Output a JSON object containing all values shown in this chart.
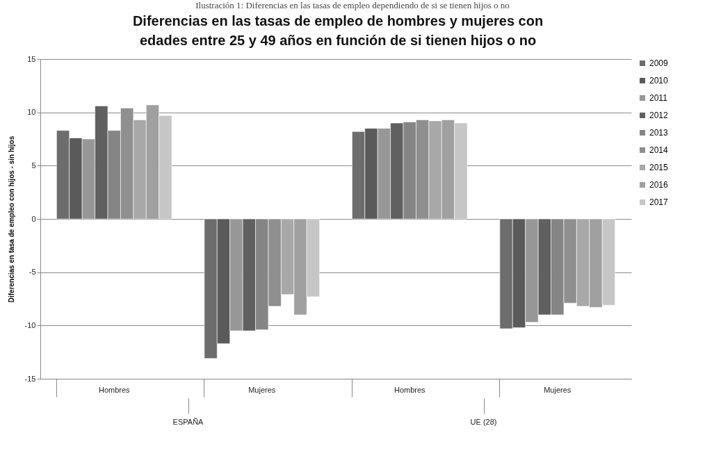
{
  "chart_data": {
    "type": "bar",
    "title": "Diferencias en las tasas de empleo de hombres y mujeres con edades entre 25 y 49 años en función de si tienen hijos o no",
    "ylabel": "Diferencias en tasa de empleo con hijos - sin hijos",
    "annotations": [
      "Ilustración 1: Diferencias en las tasas de empleo dependiendo de si se tienen hijos o no",
      "ESPAÑA",
      "UE (28)"
    ],
    "categories": [
      "Hombres",
      "Mujeres",
      "Hombres",
      "Mujeres"
    ],
    "series": [
      {
        "name": "2009",
        "color": "#6d6d6d",
        "values": [
          8.3,
          -13.1,
          8.2,
          -10.3
        ]
      },
      {
        "name": "2010",
        "color": "#5a5a5a",
        "values": [
          7.6,
          -11.7,
          8.5,
          -10.2
        ]
      },
      {
        "name": "2011",
        "color": "#979797",
        "values": [
          7.5,
          -10.5,
          8.5,
          -9.7
        ]
      },
      {
        "name": "2012",
        "color": "#606060",
        "values": [
          10.6,
          -10.5,
          9.0,
          -9.0
        ]
      },
      {
        "name": "2013",
        "color": "#858585",
        "values": [
          8.3,
          -10.4,
          9.1,
          -9.0
        ]
      },
      {
        "name": "2014",
        "color": "#8f8f8f",
        "values": [
          10.4,
          -8.2,
          9.3,
          -7.9
        ]
      },
      {
        "name": "2015",
        "color": "#a8a8a8",
        "values": [
          9.3,
          -7.1,
          9.2,
          -8.2
        ]
      },
      {
        "name": "2016",
        "color": "#a0a0a0",
        "values": [
          10.7,
          -9.0,
          9.3,
          -8.3
        ]
      },
      {
        "name": "2017",
        "color": "#c6c6c6",
        "values": [
          9.7,
          -7.3,
          9.0,
          -8.1
        ]
      }
    ],
    "ylim": [
      -15,
      15
    ],
    "yticks": [
      -15,
      -10,
      -5,
      0,
      5,
      10,
      15
    ],
    "grid": "y",
    "legend": "right"
  }
}
